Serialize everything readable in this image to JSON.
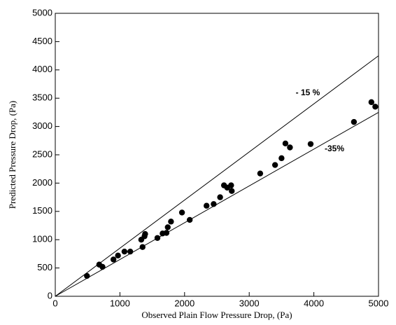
{
  "chart_data": {
    "type": "scatter",
    "x_label": "Observed Plain Flow Pressure Drop, (Pa)",
    "y_label": "Predicted Pressure Drop, (Pa)",
    "xlim": [
      0,
      5000
    ],
    "ylim": [
      0,
      5000
    ],
    "xticks": [
      0,
      1000,
      2000,
      3000,
      4000,
      5000
    ],
    "yticks": [
      0,
      500,
      1000,
      1500,
      2000,
      2500,
      3000,
      3500,
      4000,
      4500,
      5000
    ],
    "color": "#000000",
    "x": [
      490,
      680,
      730,
      900,
      970,
      1070,
      1160,
      1330,
      1350,
      1380,
      1390,
      1580,
      1660,
      1720,
      1740,
      1790,
      1960,
      2080,
      2340,
      2450,
      2550,
      2610,
      2660,
      2720,
      2730,
      3170,
      3400,
      3500,
      3560,
      3630,
      3950,
      4620,
      4890,
      4950
    ],
    "values": [
      360,
      560,
      520,
      650,
      720,
      790,
      790,
      1000,
      870,
      1060,
      1100,
      1030,
      1110,
      1120,
      1220,
      1320,
      1480,
      1350,
      1600,
      1630,
      1750,
      1960,
      1920,
      1960,
      1860,
      2170,
      2320,
      2440,
      2700,
      2630,
      2690,
      3080,
      3430,
      3350
    ],
    "lines": [
      {
        "label": "- 15 %",
        "x": [
          0,
          5000
        ],
        "values": [
          0,
          4250
        ]
      },
      {
        "label": "-35%",
        "x": [
          0,
          5000
        ],
        "values": [
          0,
          3250
        ]
      }
    ]
  }
}
